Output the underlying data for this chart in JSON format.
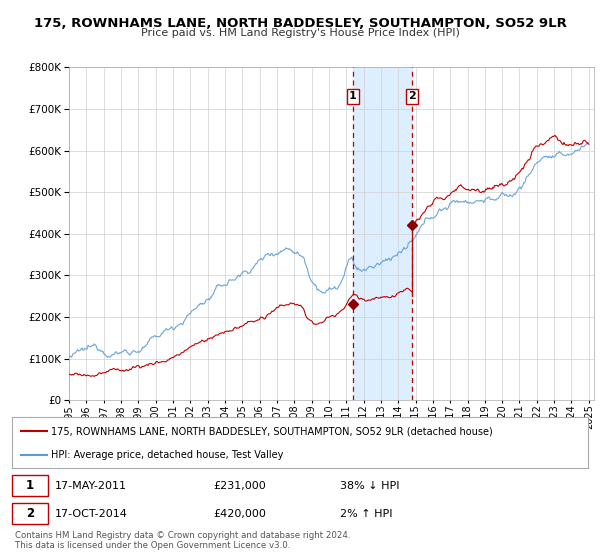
{
  "title": "175, ROWNHAMS LANE, NORTH BADDESLEY, SOUTHAMPTON, SO52 9LR",
  "subtitle": "Price paid vs. HM Land Registry's House Price Index (HPI)",
  "legend_line1": "175, ROWNHAMS LANE, NORTH BADDESLEY, SOUTHAMPTON, SO52 9LR (detached house)",
  "legend_line2": "HPI: Average price, detached house, Test Valley",
  "transaction1_date": "17-MAY-2011",
  "transaction1_price": "£231,000",
  "transaction1_hpi": "38% ↓ HPI",
  "transaction2_date": "17-OCT-2014",
  "transaction2_price": "£420,000",
  "transaction2_hpi": "2% ↑ HPI",
  "footer": "Contains HM Land Registry data © Crown copyright and database right 2024.\nThis data is licensed under the Open Government Licence v3.0.",
  "hpi_color": "#5b9bd5",
  "price_color": "#c00000",
  "marker_color": "#8B0000",
  "vline_color": "#c00000",
  "shade_color": "#ddeeff",
  "background_color": "#ffffff",
  "grid_color": "#d0d0d0",
  "ylim": [
    0,
    800000
  ],
  "xlim_start": 1995.0,
  "xlim_end": 2025.3,
  "transaction1_x": 2011.38,
  "transaction2_x": 2014.79,
  "transaction1_y": 231000,
  "transaction2_y": 420000
}
